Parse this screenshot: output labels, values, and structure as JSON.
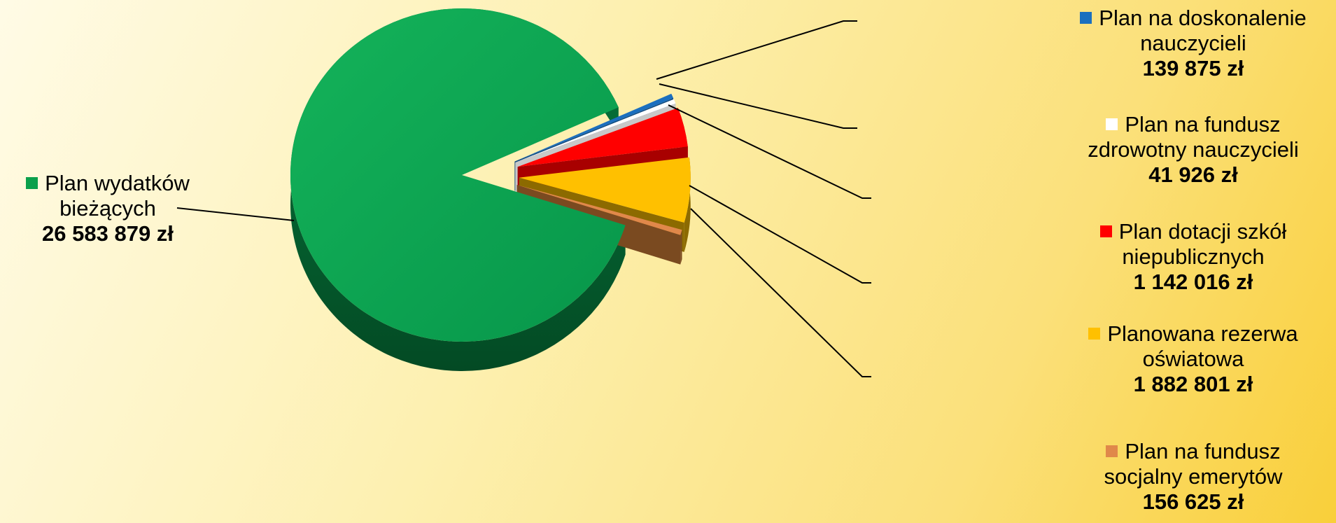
{
  "chart_data": {
    "type": "pie",
    "style": "3d-exploded",
    "currency_suffix": " zł",
    "slices": [
      {
        "label": "Plan wydatków bieżących",
        "value": 26583879,
        "value_text": "26 583 879 zł",
        "color": "#0aa04c",
        "side_color": "#05703a",
        "exploded": false
      },
      {
        "label": "Plan na doskonalenie nauczycieli",
        "value": 139875,
        "value_text": "139 875 zł",
        "color": "#1b6fbf",
        "side_color": "#10497e",
        "exploded": true
      },
      {
        "label": "Plan na fundusz zdrowotny nauczycieli",
        "value": 41926,
        "value_text": "41 926 zł",
        "color": "#ffffff",
        "side_color": "#c8c8c8",
        "exploded": true
      },
      {
        "label": "Plan dotacji szkół niepublicznych",
        "value": 1142016,
        "value_text": "1 142 016 zł",
        "color": "#ff0000",
        "side_color": "#a80000",
        "exploded": true
      },
      {
        "label": "Planowana rezerwa oświatowa",
        "value": 1882801,
        "value_text": "1 882 801 zł",
        "color": "#ffc000",
        "side_color": "#8c6a00",
        "exploded": true
      },
      {
        "label": "Plan na fundusz socjalny emerytów",
        "value": 156625,
        "value_text": "156 625 zł",
        "color": "#e0884a",
        "side_color": "#7a4a20",
        "exploded": true
      }
    ],
    "legend": {
      "green": {
        "name_1": "Plan wydatków",
        "name_2": "bieżących",
        "value": "26 583 879 zł"
      },
      "blue": {
        "name_1": "Plan na doskonalenie",
        "name_2": "nauczycieli",
        "value": "139 875 zł"
      },
      "white": {
        "name_1": "Plan na fundusz",
        "name_2": "zdrowotny nauczycieli",
        "value": "41 926 zł"
      },
      "red": {
        "name_1": "Plan dotacji szkół",
        "name_2": "niepublicznych",
        "value": "1 142 016 zł"
      },
      "yellow": {
        "name_1": "Planowana rezerwa",
        "name_2": "oświatowa",
        "value": "1 882 801 zł"
      },
      "orange": {
        "name_1": "Plan na fundusz",
        "name_2": "socjalny emerytów",
        "value": "156 625 zł"
      }
    }
  }
}
